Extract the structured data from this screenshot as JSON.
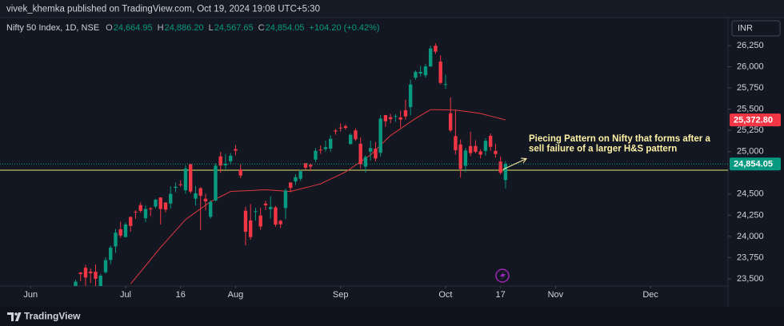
{
  "header": {
    "text": "vivek_khemka published on TradingView.com, Oct 19, 2024 19:08 UTC+5:30"
  },
  "footer": {
    "brand": "TradingView"
  },
  "chart_data": {
    "type": "candlestick",
    "currency": "INR",
    "legend": {
      "title": "Nifty 50 Index, 1D, NSE",
      "items": [
        {
          "key": "O",
          "value": "24,664.95"
        },
        {
          "key": "H",
          "value": "24,886.20"
        },
        {
          "key": "L",
          "value": "24,567.65"
        },
        {
          "key": "C",
          "value": "24,854.05"
        }
      ],
      "change": "+104.20 (+0.42%)"
    },
    "up_color": "#089981",
    "down_color": "#f23645",
    "open": [
      23400,
      23574,
      23630,
      23586,
      23584,
      23382,
      23578,
      23723,
      23882,
      24085,
      23992,
      24229,
      24291,
      24369,
      24214,
      24330,
      24351,
      24459,
      24400,
      24388,
      24573,
      24615,
      24544,
      24853,
      24445,
      24568,
      24444,
      24231,
      24424,
      24944,
      24839,
      24886,
      25030,
      24789,
      24303,
      24189,
      24289,
      24247,
      24387,
      24321,
      24342,
      24184,
      24335,
      24636,
      24649,
      24680,
      24863,
      24845,
      24906,
      25024,
      25030,
      25035,
      25249,
      25283,
      25300,
      25089,
      25250,
      25093,
      24823,
      24999,
      25034,
      24986,
      25430,
      25406,
      25416,
      25402,
      25487,
      25525,
      25872,
      25921,
      25900,
      26005,
      26248,
      26061,
      25788,
      25452,
      25182,
      25084,
      24832,
      25065,
      25067,
      25002,
      25008,
      25186,
      25008,
      24882,
      24664.95
    ],
    "high": [
      23490,
      23580,
      23665,
      23624,
      23668,
      23558,
      23754,
      23890,
      24087,
      24174,
      24164,
      24236,
      24309,
      24401,
      24364,
      24345,
      24443,
      24461,
      24403,
      24592,
      24635,
      24661,
      24837,
      24854,
      24595,
      24582,
      24504,
      24426,
      24861,
      24999,
      24971,
      24984,
      25078,
      24851,
      24350,
      24382,
      24338,
      24340,
      24420,
      24473,
      24359,
      24196,
      24563,
      24638,
      24734,
      24787,
      24867,
      24858,
      25043,
      25073,
      25130,
      25193,
      25268,
      25333,
      25320,
      25216,
      25275,
      25168,
      24957,
      25130,
      25113,
      25433,
      25430,
      25445,
      25441,
      25482,
      25611,
      25849,
      25956,
      26011,
      26032,
      26250,
      26277,
      26134,
      25907,
      25639,
      25485,
      25143,
      25044,
      25234,
      25134,
      25028,
      25159,
      25213,
      25093,
      24942,
      24886.2
    ],
    "low": [
      23354,
      23472,
      23412,
      23450,
      23398,
      23351,
      23563,
      23673,
      23806,
      23985,
      23993,
      24056,
      24207,
      24281,
      24169,
      24240,
      24331,
      24141,
      24284,
      24331,
      24522,
      24587,
      24504,
      24508,
      24362,
      24074,
      24307,
      24211,
      24410,
      24750,
      24798,
      24856,
      24956,
      24686,
      23894,
      23960,
      24185,
      24079,
      24311,
      24212,
      24116,
      24099,
      24204,
      24522,
      24607,
      24654,
      24784,
      24771,
      24874,
      24974,
      25000,
      24998,
      25199,
      25235,
      25260,
      25083,
      25127,
      24802,
      24753,
      24896,
      24885,
      24942,
      25292,
      25336,
      25352,
      25285,
      25376,
      25426,
      25847,
      25886,
      25871,
      25998,
      26151,
      25794,
      25739,
      25230,
      24966,
      24694,
      24757,
      24947,
      24979,
      24920,
      24952,
      25008,
      24929,
      24729,
      24567.65
    ],
    "close": [
      23466,
      23557,
      23516,
      23567,
      23501,
      23537,
      23721,
      23868,
      24044,
      24010,
      24141,
      24123,
      24286,
      24302,
      24323,
      24320,
      24433,
      24324,
      24316,
      24502,
      24586,
      24613,
      24800,
      24530,
      24509,
      24479,
      24413,
      24406,
      24834,
      24836,
      24857,
      24951,
      25011,
      24718,
      24055,
      23992,
      24297,
      24117,
      24367,
      24347,
      24139,
      24143,
      24541,
      24572,
      24698,
      24770,
      24811,
      24823,
      25010,
      25017,
      25052,
      25151,
      25236,
      25279,
      25279,
      25198,
      25145,
      24852,
      24936,
      25041,
      24918,
      25389,
      25357,
      25383,
      25418,
      25377,
      25415,
      25791,
      25939,
      25940,
      26004,
      26216,
      26178,
      25811,
      25796,
      25250,
      25015,
      24796,
      25013,
      24982,
      24998,
      24964,
      25128,
      25057,
      24971,
      24750,
      24854.05
    ],
    "moving_average": {
      "color": "#e0383e",
      "values": [
        null,
        null,
        null,
        null,
        null,
        null,
        null,
        null,
        null,
        null,
        null,
        23440,
        23512,
        23583,
        23655,
        23727,
        23798,
        23870,
        23936,
        24002,
        24068,
        24134,
        24200,
        24242,
        24284,
        24326,
        24368,
        24410,
        24440,
        24470,
        24500,
        24530,
        24533,
        24536,
        24539,
        24541,
        24544,
        24547,
        24550,
        24546,
        24542,
        24538,
        24534,
        24530,
        24545,
        24560,
        24575,
        24590,
        24605,
        24620,
        24648,
        24676,
        24704,
        24732,
        24760,
        24800,
        24840,
        24880,
        24920,
        24960,
        25018,
        25075,
        25133,
        25190,
        25230,
        25270,
        25310,
        25350,
        25390,
        25425,
        25460,
        25495,
        25494,
        25493,
        25492,
        25491,
        25490,
        25482,
        25474,
        25466,
        25458,
        25450,
        25435,
        25419,
        25404,
        25388,
        25372.8
      ]
    },
    "hlines": [
      {
        "value": 24781,
        "color": "#e6e36a"
      }
    ],
    "price_badges": [
      {
        "value": 25372.8,
        "label": "25,372.80",
        "color": "#f23645",
        "price_line": false
      },
      {
        "value": 24854.05,
        "label": "24,854.05",
        "color": "#089981",
        "price_line": true
      }
    ],
    "annotation": {
      "lines": [
        "Piecing Pattern on Nifty that forms after a",
        "sell failure of a larger H&S pattern"
      ],
      "color": "#fff3a6"
    },
    "xlim": [
      -15.12,
      130.5
    ],
    "xticks": [
      {
        "value": -9,
        "label": "Jun"
      },
      {
        "value": 10,
        "label": "Jul"
      },
      {
        "value": 21,
        "label": "16"
      },
      {
        "value": 32,
        "label": "Aug"
      },
      {
        "value": 53,
        "label": "Sep"
      },
      {
        "value": 74,
        "label": "Oct"
      },
      {
        "value": 85,
        "label": "17"
      },
      {
        "value": 96,
        "label": "Nov"
      },
      {
        "value": 115,
        "label": "Dec"
      }
    ],
    "ylim": [
      23415,
      26580
    ],
    "yticks": [
      {
        "value": 23500,
        "label": "23,500"
      },
      {
        "value": 23750,
        "label": "23,750"
      },
      {
        "value": 24000,
        "label": "24,000"
      },
      {
        "value": 24250,
        "label": "24,250"
      },
      {
        "value": 24500,
        "label": "24,500"
      },
      {
        "value": 25000,
        "label": "25,000"
      },
      {
        "value": 25250,
        "label": "25,250"
      },
      {
        "value": 25500,
        "label": "25,500"
      },
      {
        "value": 25750,
        "label": "25,750"
      },
      {
        "value": 26000,
        "label": "26,000"
      },
      {
        "value": 26250,
        "label": "26,250"
      }
    ],
    "grid": false
  }
}
